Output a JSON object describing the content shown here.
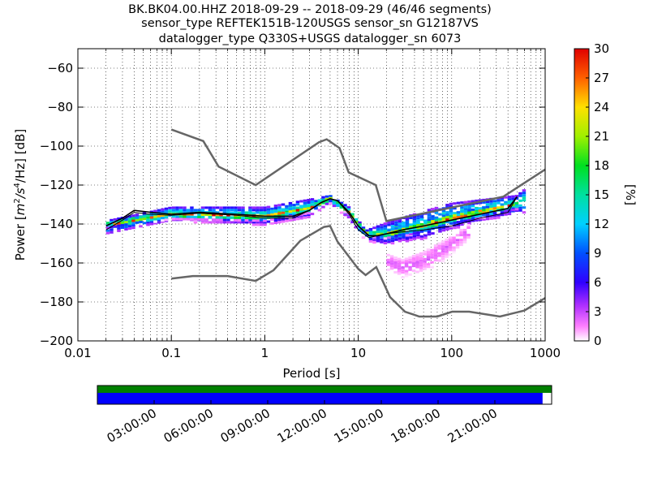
{
  "title_lines": [
    "BK.BK04.00.HHZ   2018-09-29 -- 2018-09-29  (46/46 segments)",
    "sensor_type REFTEK151B-120USGS sensor_sn G12187VS",
    "datalogger_type Q330S+USGS datalogger_sn 6073"
  ],
  "colorbar": {
    "label": "[%]",
    "min": 0,
    "max": 30,
    "ticks": [
      "0",
      "3",
      "6",
      "9",
      "12",
      "15",
      "18",
      "21",
      "24",
      "27",
      "30"
    ]
  },
  "time_axis": {
    "tick_labels": [
      "03:00:00",
      "06:00:00",
      "09:00:00",
      "12:00:00",
      "15:00:00",
      "18:00:00",
      "21:00:00"
    ],
    "green_bar_color": "#008000",
    "blue_bar_color": "#0000ff",
    "blue_coverage_fraction": 0.98
  },
  "chart_data": {
    "type": "heatmap",
    "x_scale": "log",
    "xlabel": "Period [s]",
    "ylabel": "Power [m²/s⁴/Hz] [dB]",
    "ylabel_parts": {
      "prefix": "Power [",
      "m": "m",
      "m_exp": "2",
      "slash1": "/s",
      "s_exp": "4",
      "suffix": "/Hz] [dB]"
    },
    "xlim": [
      0.01,
      1000
    ],
    "ylim": [
      -200,
      -50
    ],
    "x_ticks": [
      0.01,
      0.1,
      1,
      10,
      100,
      1000
    ],
    "x_tick_labels": [
      "0.01",
      "0.1",
      "1",
      "10",
      "100",
      "1000"
    ],
    "y_ticks": [
      -200,
      -180,
      -160,
      -140,
      -120,
      -100,
      -80,
      -60
    ],
    "y_tick_labels": [
      "−200",
      "−180",
      "−160",
      "−140",
      "−120",
      "−100",
      "−80",
      "−60"
    ],
    "noise_model_high": {
      "x": [
        0.1,
        0.22,
        0.32,
        0.8,
        3.8,
        4.6,
        6.3,
        7.9,
        15.4,
        20,
        354.8,
        1000
      ],
      "y": [
        -91.5,
        -97.4,
        -110.5,
        -120,
        -98,
        -96.5,
        -101,
        -113.5,
        -120,
        -138.5,
        -126,
        -112
      ]
    },
    "noise_model_low": {
      "x": [
        0.1,
        0.17,
        0.4,
        0.8,
        1.24,
        2.4,
        4.3,
        5,
        6,
        10,
        12,
        15.6,
        21.9,
        31.6,
        45,
        70,
        101,
        154,
        328,
        600,
        1000
      ],
      "y": [
        -168,
        -166.7,
        -166.7,
        -169.2,
        -163.7,
        -148.6,
        -141.5,
        -141,
        -149,
        -163,
        -166.2,
        -162.1,
        -177.5,
        -185,
        -187.5,
        -187.5,
        -185,
        -185,
        -187.5,
        -184.4,
        -178
      ]
    },
    "mean_curve": {
      "x": [
        0.02,
        0.03,
        0.04,
        0.06,
        0.1,
        0.2,
        0.5,
        1,
        2,
        3,
        4,
        5,
        6,
        8,
        10,
        13,
        16,
        20,
        30,
        50,
        100,
        200,
        400,
        500
      ],
      "y": [
        -141,
        -137,
        -133,
        -134,
        -135,
        -134,
        -135,
        -136,
        -136,
        -133,
        -129,
        -127,
        -128,
        -134,
        -141,
        -146,
        -146,
        -145,
        -143,
        -141,
        -138,
        -135,
        -132,
        -126
      ]
    },
    "mode_curve": {
      "x": [
        0.02,
        0.03,
        0.04,
        0.06,
        0.1,
        0.2,
        0.5,
        1,
        2,
        3,
        4,
        5,
        6,
        8,
        10,
        13,
        16,
        20,
        30,
        50,
        100,
        200,
        400,
        500
      ],
      "y": [
        -143,
        -138,
        -134,
        -135,
        -135.5,
        -134.5,
        -135.5,
        -137,
        -137,
        -133,
        -129,
        -127,
        -128,
        -135,
        -143,
        -147,
        -146,
        -145,
        -144,
        -143,
        -141,
        -137,
        -134,
        -126
      ]
    },
    "psd_density_bands": [
      {
        "x": [
          0.02,
          0.1,
          1,
          3,
          5,
          8,
          12,
          20,
          50,
          100,
          500,
          600
        ],
        "low": [
          -145,
          -138,
          -140,
          -136,
          -129,
          -137,
          -148,
          -150,
          -147,
          -142,
          -134,
          -134
        ],
        "high": [
          -138,
          -131,
          -131,
          -127,
          -125,
          -131,
          -143,
          -139,
          -133,
          -129,
          -125,
          -122
        ],
        "percent": 13
      },
      {
        "x": [
          0.02,
          0.1,
          1,
          3,
          5,
          8,
          12,
          20,
          50,
          100,
          500
        ],
        "low": [
          -142,
          -137,
          -138,
          -134,
          -128,
          -135,
          -146,
          -147,
          -144,
          -140,
          -132
        ],
        "high": [
          -139,
          -133,
          -134,
          -130,
          -126,
          -132,
          -144,
          -143,
          -138,
          -134,
          -128
        ],
        "percent": 22
      },
      {
        "x": [
          20,
          30,
          50,
          70,
          100,
          150
        ],
        "low": [
          -163,
          -167,
          -164,
          -161,
          -155,
          -148
        ],
        "high": [
          -155,
          -158,
          -154,
          -150,
          -146,
          -140
        ],
        "percent": 2
      }
    ]
  }
}
